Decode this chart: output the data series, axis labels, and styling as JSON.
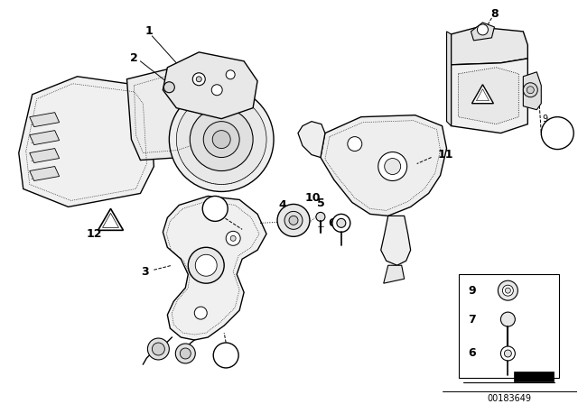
{
  "background_color": "#ffffff",
  "diagram_id": "00183649",
  "line_color": "#000000",
  "text_color": "#000000",
  "lw_main": 1.0,
  "lw_thin": 0.6,
  "lw_dashed": 0.7
}
